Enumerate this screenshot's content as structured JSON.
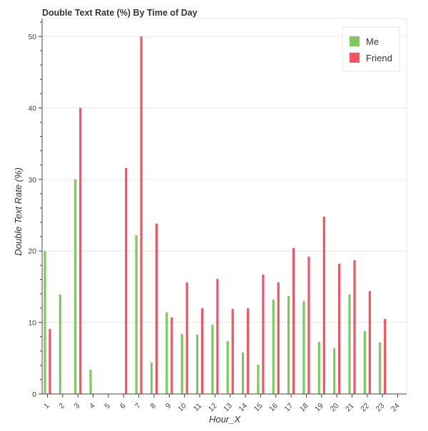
{
  "chart_data": {
    "type": "bar",
    "title": "Double Text Rate (%) By Time of Day",
    "xlabel": "Hour_X",
    "ylabel": "Double Text Rate (%)",
    "categories": [
      "1",
      "2",
      "3",
      "4",
      "5",
      "6",
      "7",
      "8",
      "9",
      "10",
      "11",
      "12",
      "13",
      "14",
      "15",
      "16",
      "17",
      "18",
      "19",
      "20",
      "21",
      "22",
      "23",
      "24"
    ],
    "ylim": [
      0,
      52.5
    ],
    "yticks": [
      "0",
      "10",
      "20",
      "30",
      "40",
      "50"
    ],
    "grid": true,
    "legend_position": "top-right",
    "series": [
      {
        "name": "Me",
        "color": "#7dc95e",
        "values": [
          20,
          13.9,
          30,
          3.4,
          0,
          0,
          22.2,
          4.4,
          11.4,
          8.4,
          8.3,
          9.7,
          7.4,
          5.8,
          4.1,
          13.2,
          13.7,
          13.0,
          7.3,
          6.4,
          13.9,
          8.8,
          7.2,
          0
        ]
      },
      {
        "name": "Friend",
        "color": "#f25464",
        "values": [
          9.1,
          0,
          40,
          0,
          0,
          31.6,
          50,
          23.8,
          10.7,
          15.6,
          12.0,
          16.1,
          11.9,
          12.0,
          16.7,
          15.6,
          20.4,
          19.2,
          24.8,
          18.2,
          18.7,
          14.4,
          10.5,
          0
        ]
      }
    ]
  }
}
